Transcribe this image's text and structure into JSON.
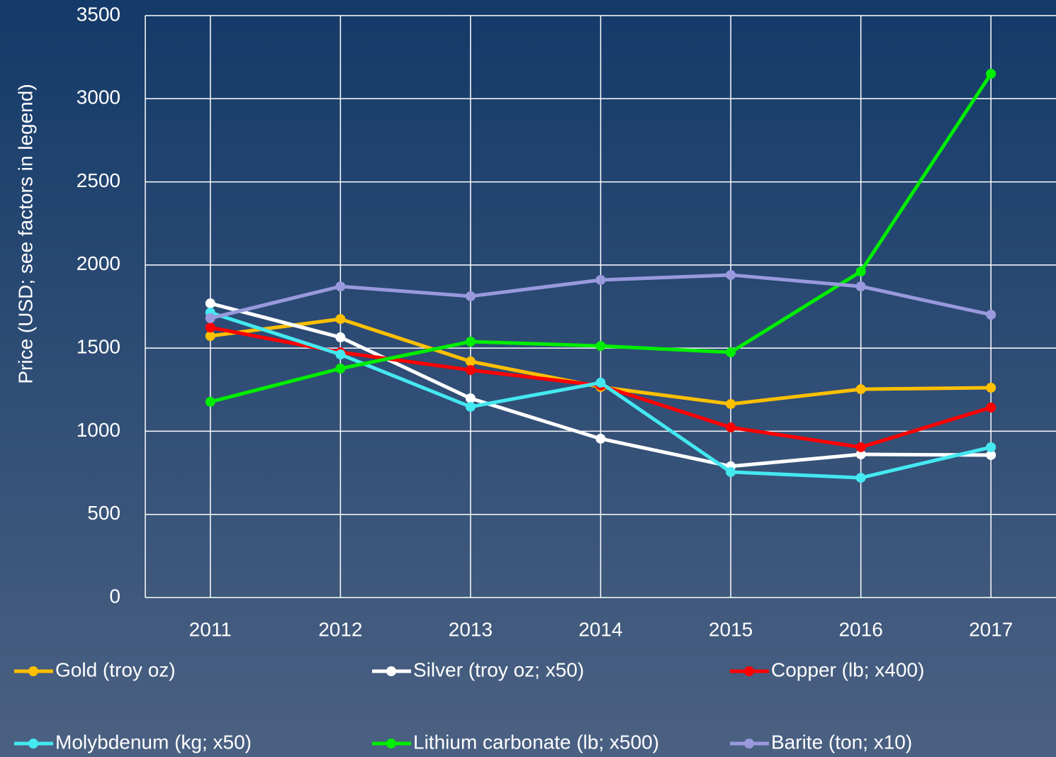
{
  "chart_data": {
    "type": "line",
    "y_label": "Price (USD; see factors in legend)",
    "categories": [
      "2011",
      "2012",
      "2013",
      "2014",
      "2015",
      "2016",
      "2017"
    ],
    "series": [
      {
        "name": "Gold (troy oz)",
        "color": "#ffc000",
        "values": [
          1573,
          1675,
          1420,
          1266,
          1164,
          1253,
          1262
        ]
      },
      {
        "name": "Silver (troy oz; x50)",
        "color": "#ffffff",
        "values": [
          1769,
          1565,
          1198,
          955,
          789,
          861,
          857
        ]
      },
      {
        "name": "Copper (lb; x400)",
        "color": "#ff0000",
        "values": [
          1624,
          1475,
          1368,
          1275,
          1023,
          904,
          1143
        ]
      },
      {
        "name": "Molybdenum (kg; x50)",
        "color": "#44e8f0",
        "values": [
          1714,
          1462,
          1147,
          1292,
          755,
          720,
          904
        ]
      },
      {
        "name": "Lithium carbonate (lb; x500)",
        "color": "#00ee00",
        "values": [
          1177,
          1377,
          1539,
          1513,
          1475,
          1961,
          3150
        ]
      },
      {
        "name": "Barite  (ton; x10)",
        "color": "#9999dd",
        "values": [
          1680,
          1871,
          1812,
          1910,
          1940,
          1871,
          1701
        ]
      }
    ],
    "ylim": [
      0,
      3500
    ],
    "yticks": [
      0,
      500,
      1000,
      1500,
      2000,
      2500,
      3000,
      3500
    ],
    "grid": true,
    "legend": "bottom"
  }
}
